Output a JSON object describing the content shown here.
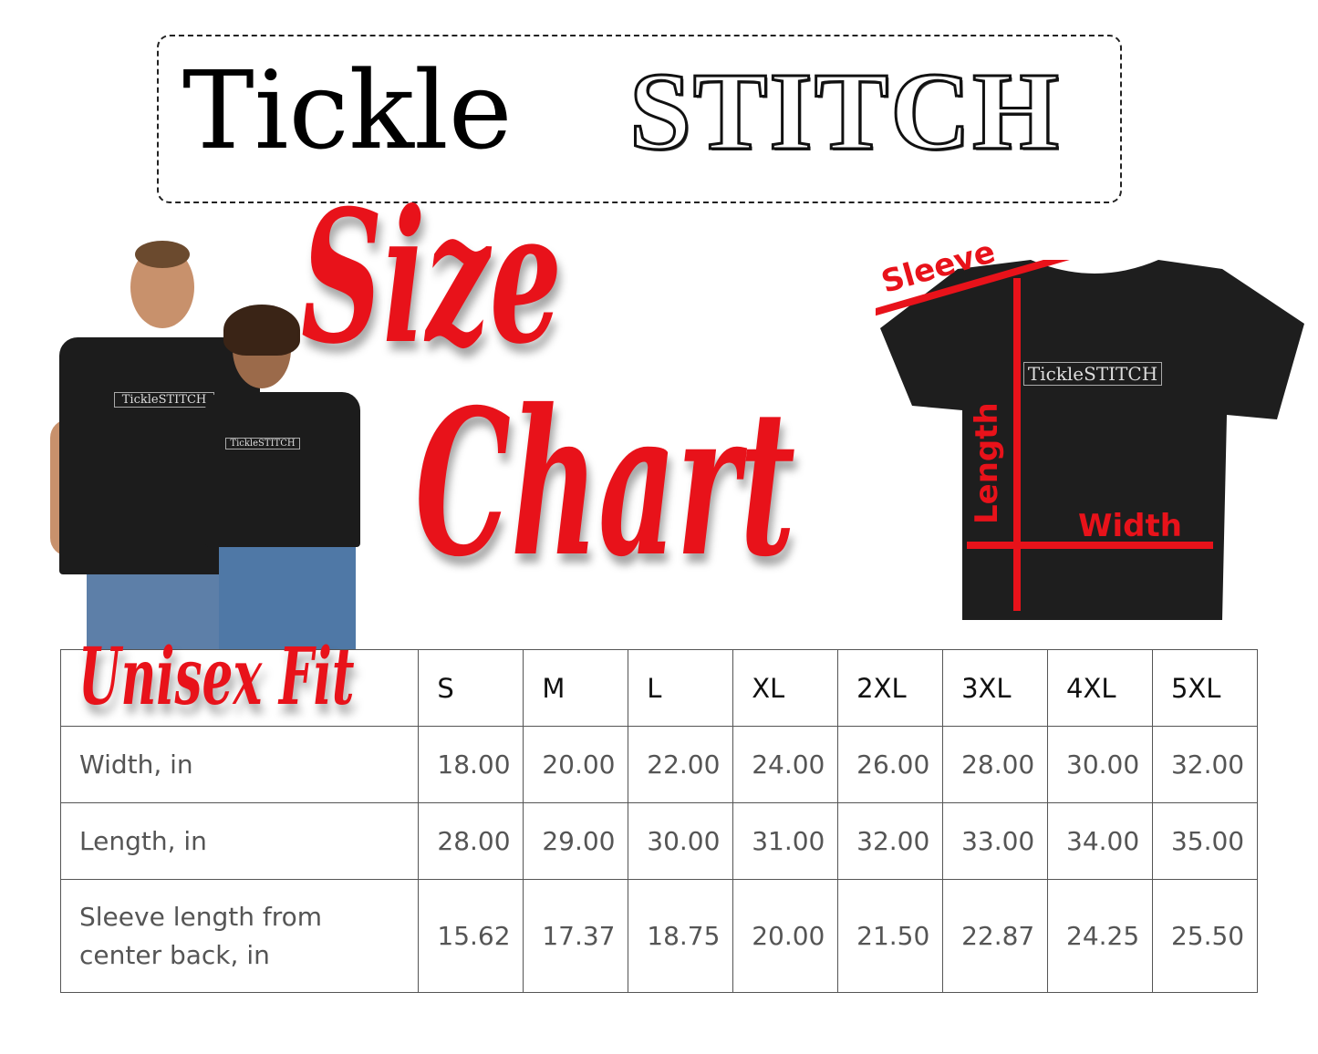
{
  "brand": {
    "part1": "Tickle",
    "part2": "STITCH"
  },
  "title": {
    "line1": "Size",
    "line2": "Chart"
  },
  "shirt_print": "TickleSTITCH",
  "diagram": {
    "sleeve": "Sleeve",
    "length": "Length",
    "width": "Width",
    "accent_color": "#e8121a"
  },
  "table": {
    "corner_label": "Unisex Fit",
    "sizes": [
      "S",
      "M",
      "L",
      "XL",
      "2XL",
      "3XL",
      "4XL",
      "5XL"
    ],
    "rows": [
      {
        "label": "Width, in",
        "values": [
          "18.00",
          "20.00",
          "22.00",
          "24.00",
          "26.00",
          "28.00",
          "30.00",
          "32.00"
        ]
      },
      {
        "label": "Length, in",
        "values": [
          "28.00",
          "29.00",
          "30.00",
          "31.00",
          "32.00",
          "33.00",
          "34.00",
          "35.00"
        ]
      },
      {
        "label": "Sleeve length from center back, in",
        "values": [
          "15.62",
          "17.37",
          "18.75",
          "20.00",
          "21.50",
          "22.87",
          "24.25",
          "25.50"
        ]
      }
    ]
  }
}
